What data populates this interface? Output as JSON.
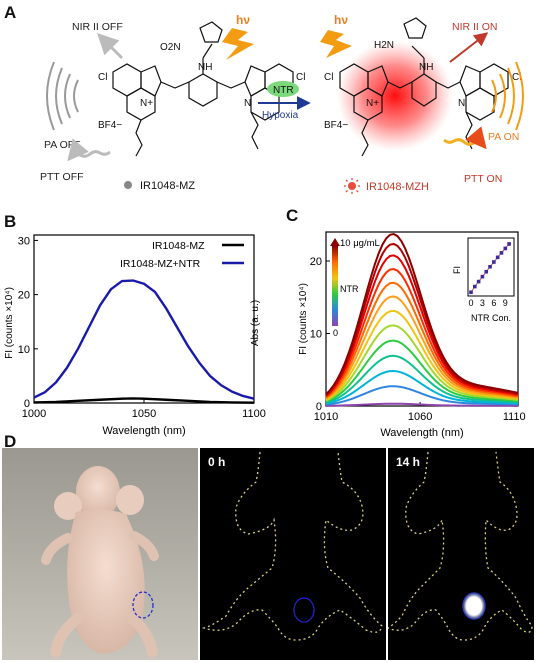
{
  "panels": {
    "A": {
      "letter": "A",
      "left_molecule_name": "IR1048-MZ",
      "right_molecule_name": "IR1048-MZH",
      "nir_off": "NIR II OFF",
      "nir_on": "NIR II ON",
      "pa_off": "PA OFF",
      "pa_on": "PA ON",
      "ptt_off": "PTT OFF",
      "ptt_on": "PTT ON",
      "hv": "hν",
      "ntr": "NTR",
      "hypoxia": "Hypoxia",
      "counterion": "BF4−",
      "cl": "Cl",
      "nplus": "N+",
      "nh": "NH",
      "n": "N",
      "no2": "O2N",
      "h2n": "H2N",
      "colors": {
        "arrow_blue": "#1f3a93",
        "ntr_oval": "#7bd87b",
        "glow": "#ff2020",
        "orange": "#f39c12",
        "red_arrow": "#c0392b"
      }
    },
    "B": {
      "letter": "B",
      "chart_data": {
        "type": "line",
        "xlabel": "Wavelength (nm)",
        "ylabel": "FI (counts ×10⁴)",
        "ylabel_right": "Abs (a. u.)",
        "xlim": [
          1000,
          1100
        ],
        "ylim": [
          0,
          31
        ],
        "xticks": [
          1000,
          1050,
          1100
        ],
        "yticks": [
          0,
          10,
          20,
          30
        ],
        "legend_position": "top-right",
        "series": [
          {
            "name": "IR1048-MZ",
            "color": "#000000",
            "x": [
              1000,
              1010,
              1020,
              1030,
              1040,
              1045,
              1050,
              1060,
              1070,
              1080,
              1090,
              1100
            ],
            "y": [
              0.1,
              0.2,
              0.4,
              0.6,
              0.8,
              0.85,
              0.8,
              0.6,
              0.4,
              0.2,
              0.1,
              0.05
            ]
          },
          {
            "name": "IR1048-MZ+NTR",
            "color": "#1a1aaa",
            "x": [
              1000,
              1005,
              1010,
              1015,
              1020,
              1025,
              1030,
              1035,
              1040,
              1045,
              1050,
              1055,
              1060,
              1065,
              1070,
              1075,
              1080,
              1085,
              1090,
              1095,
              1100
            ],
            "y": [
              1.0,
              2.0,
              3.8,
              6.5,
              10.0,
              14.0,
              18.0,
              21.0,
              22.5,
              22.6,
              22.0,
              20.5,
              17.5,
              14.0,
              10.5,
              7.5,
              5.0,
              3.3,
              2.1,
              1.3,
              0.8
            ]
          }
        ]
      }
    },
    "C": {
      "letter": "C",
      "chart_data": {
        "type": "line",
        "xlabel": "Wavelength (nm)",
        "ylabel": "FI (counts ×10⁴)",
        "xlim": [
          1010,
          1112
        ],
        "ylim": [
          0,
          24
        ],
        "xticks": [
          1010,
          1060,
          1110
        ],
        "yticks": [
          0,
          10,
          20
        ],
        "colorbar_top": "10 μg/mL",
        "colorbar_mid": "NTR",
        "colorbar_bottom": "0",
        "peak_x": 1045,
        "peaks": [
          0.3,
          2.6,
          4.6,
          6.6,
          8.6,
          10.6,
          12.5,
          14.4,
          16.2,
          18.0,
          19.8,
          21.3,
          22.6
        ],
        "curve_colors": [
          "#8e44ad",
          "#2e86de",
          "#00b4d8",
          "#10c090",
          "#2ecc40",
          "#a3d92c",
          "#f1c40f",
          "#ff9f1a",
          "#ff6a00",
          "#ff2d00",
          "#e60000",
          "#b30000",
          "#8b0000"
        ],
        "inset": {
          "type": "scatter",
          "xlabel": "NTR Con.",
          "ylabel": "FI",
          "xticks": [
            0,
            3,
            6,
            9
          ],
          "x": [
            0,
            1,
            2,
            3,
            4,
            5,
            6,
            7,
            8,
            9,
            10
          ],
          "y": [
            0.3,
            2.6,
            4.6,
            6.6,
            8.6,
            10.6,
            12.5,
            14.4,
            16.2,
            18.0,
            19.8
          ],
          "xlim": [
            0,
            10.5
          ],
          "ylim": [
            0,
            21
          ]
        }
      }
    },
    "D": {
      "letter": "D",
      "time_0": "0 h",
      "time_14": "14 h"
    }
  }
}
